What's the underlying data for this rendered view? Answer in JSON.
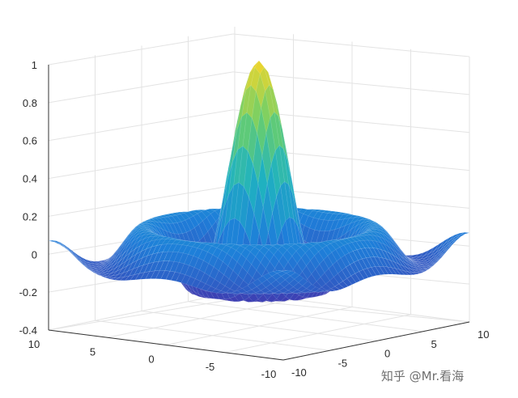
{
  "chart_data": {
    "type": "surface",
    "function": "sin(r)/r, r = sqrt(x^2 + y^2)",
    "xlim": [
      -10,
      10
    ],
    "ylim": [
      -10,
      10
    ],
    "zlim": [
      -0.4,
      1
    ],
    "x_ticks": [
      "10",
      "5",
      "0",
      "-5",
      "-10"
    ],
    "y_ticks": [
      "-10",
      "-5",
      "0",
      "5",
      "10"
    ],
    "z_ticks": [
      "1",
      "0.8",
      "0.6",
      "0.4",
      "0.2",
      "0",
      "-0.2",
      "-0.4"
    ],
    "peak": {
      "x": 0,
      "y": 0,
      "z": 1
    },
    "grid": true,
    "colormap": [
      "#3f3bb0",
      "#1e7fd9",
      "#1fb2c0",
      "#6ccf6a",
      "#f5d62a"
    ]
  },
  "watermark": "知乎 @Mr.看海"
}
